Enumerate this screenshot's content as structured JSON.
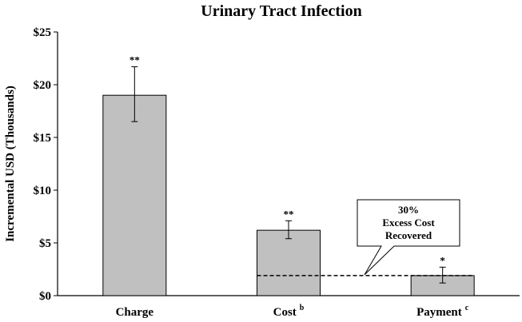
{
  "chart_data": {
    "type": "bar",
    "title": "Urinary Tract Infection",
    "xlabel": "",
    "ylabel": "Incremental USD (Thousands)",
    "ylim": [
      0,
      25
    ],
    "yticks": [
      "$0",
      "$5",
      "$10",
      "$15",
      "$20",
      "$25"
    ],
    "categories": [
      {
        "label": "Charge",
        "superscript": ""
      },
      {
        "label": "Cost",
        "superscript": "b"
      },
      {
        "label": "Payment",
        "superscript": "c"
      }
    ],
    "values": [
      19.0,
      6.2,
      1.9
    ],
    "error_low": [
      16.5,
      5.4,
      1.2
    ],
    "error_high": [
      21.7,
      7.1,
      2.7
    ],
    "significance": [
      "**",
      "**",
      "*"
    ],
    "bar_color": "#c0c0c0",
    "reference_line": {
      "value": 1.9,
      "style": "dashed"
    },
    "annotation": {
      "lines": [
        "30%",
        "Excess Cost",
        "Recovered"
      ]
    },
    "grid": false,
    "legend": "none"
  }
}
